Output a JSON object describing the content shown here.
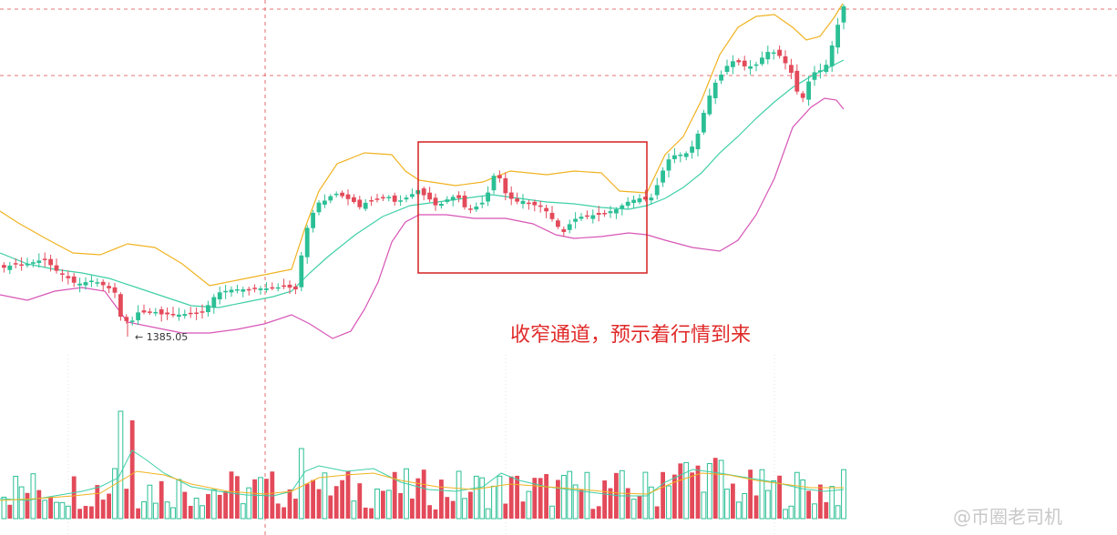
{
  "chart_data": {
    "type": "candlestick",
    "indicators": [
      "bollinger-bands",
      "volume"
    ],
    "low_marker_label": "1385.05",
    "annotation": "收窄通道，预示着行情到来",
    "watermark": "@币圈老司机",
    "colors": {
      "up": "#2bbf95",
      "down": "#e34a5a",
      "upper_band": "#f0b323",
      "middle_band": "#3fcfa7",
      "lower_band": "#d755b6",
      "highlight_box": "#d62020",
      "grid_line": "#e04848",
      "background": "#ffffff"
    },
    "grid": true
  }
}
